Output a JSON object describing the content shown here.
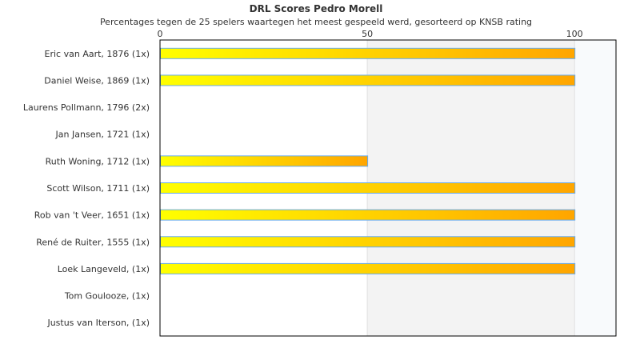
{
  "chart_data": {
    "type": "bar",
    "orientation": "horizontal",
    "title": "DRL Scores Pedro Morell",
    "subtitle": "Percentages tegen de 25 spelers waartegen het meest gespeeld werd, gesorteerd op KNSB rating",
    "categories": [
      "Eric van Aart, 1876 (1x)",
      "Daniel Weise, 1869 (1x)",
      "Laurens Pollmann, 1796 (2x)",
      "Jan Jansen, 1721 (1x)",
      "Ruth Woning, 1712 (1x)",
      "Scott Wilson, 1711 (1x)",
      "Rob van 't Veer, 1651 (1x)",
      "René de Ruiter, 1555 (1x)",
      "Loek Langeveld,  (1x)",
      "Tom Goulooze,  (1x)",
      "Justus van Iterson,  (1x)"
    ],
    "values": [
      100,
      100,
      0,
      0,
      50,
      100,
      100,
      100,
      100,
      0,
      0
    ],
    "xticks": [
      "0",
      "50",
      "100"
    ],
    "xlim": [
      0,
      110
    ],
    "axis_position": "top",
    "bar_gradient": [
      "#ffff00",
      "#ffa500"
    ],
    "bar_border": "#66aaee",
    "bands": [
      "#ffffff",
      "#f3f3f3",
      "#f8fafc"
    ]
  }
}
